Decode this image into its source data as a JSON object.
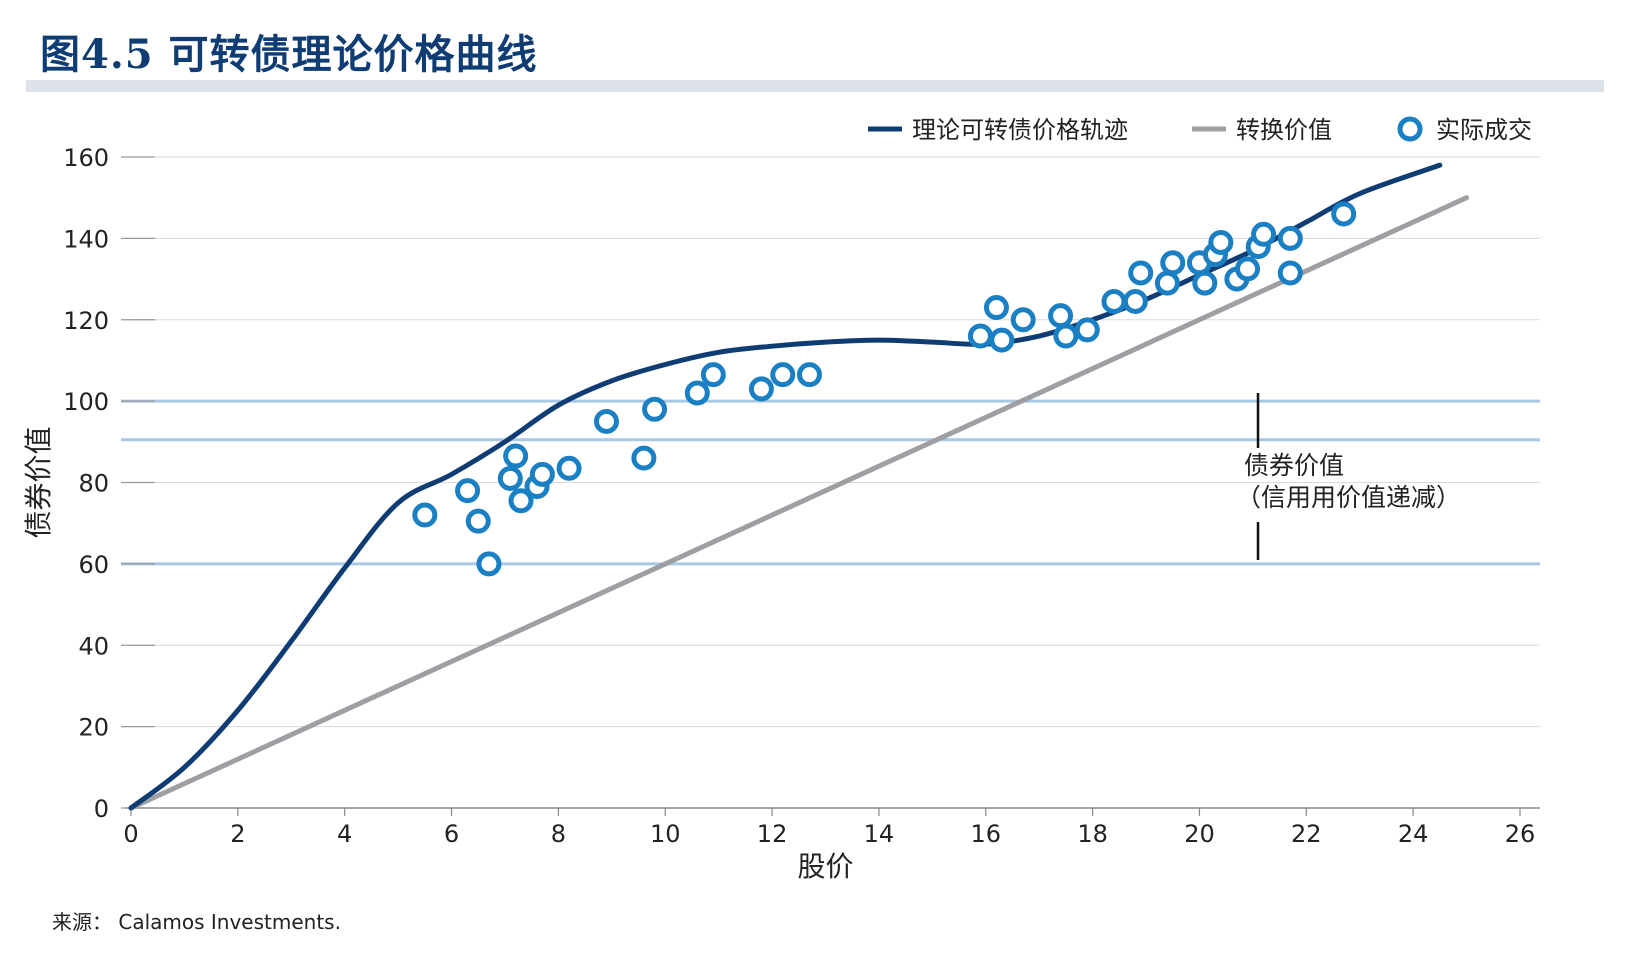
{
  "header": {
    "title": "图4.5 可转债理论价格曲线"
  },
  "footer": {
    "source": "来源： Calamos Investments."
  },
  "annotation": {
    "line1": "债券价值",
    "line2": "（信用用价值递减）"
  },
  "colors": {
    "theory": "#0f3d73",
    "conversion": "#9d9fa3",
    "actual": "#1b7fc3",
    "band": "#a8c8e6",
    "title_bar": "#dde2e8"
  },
  "chart_data": {
    "type": "line",
    "xlabel": "股价",
    "ylabel": "债券价值",
    "xlim": [
      0,
      26
    ],
    "ylim": [
      0,
      160
    ],
    "xticks": [
      0,
      2,
      4,
      6,
      8,
      10,
      12,
      14,
      16,
      18,
      20,
      22,
      24,
      26
    ],
    "yticks": [
      0,
      20,
      40,
      60,
      80,
      100,
      120,
      140,
      160
    ],
    "legend_position": "top-right",
    "reference_lines": [
      100,
      90.5,
      60
    ],
    "series": [
      {
        "name": "理论可转债价格轨迹",
        "kind": "line",
        "points": [
          [
            0,
            0
          ],
          [
            1,
            10
          ],
          [
            2,
            24
          ],
          [
            3,
            41
          ],
          [
            4,
            59
          ],
          [
            5,
            75
          ],
          [
            6,
            82
          ],
          [
            7,
            90
          ],
          [
            8,
            99
          ],
          [
            9,
            105
          ],
          [
            10,
            109
          ],
          [
            11,
            112
          ],
          [
            12,
            113.5
          ],
          [
            13,
            114.5
          ],
          [
            14,
            115
          ],
          [
            15,
            114.5
          ],
          [
            16,
            114
          ],
          [
            17,
            116
          ],
          [
            18,
            120
          ],
          [
            19,
            125
          ],
          [
            20,
            131
          ],
          [
            21,
            137
          ],
          [
            22,
            144
          ],
          [
            23,
            151
          ],
          [
            24.5,
            158
          ]
        ]
      },
      {
        "name": "转换价值",
        "kind": "line",
        "points": [
          [
            0,
            0
          ],
          [
            25,
            150
          ]
        ]
      },
      {
        "name": "实际成交",
        "kind": "scatter",
        "points": [
          [
            5.5,
            72
          ],
          [
            6.3,
            78
          ],
          [
            6.5,
            70.5
          ],
          [
            6.7,
            60
          ],
          [
            7.1,
            81
          ],
          [
            7.2,
            86.5
          ],
          [
            7.3,
            75.5
          ],
          [
            7.6,
            79
          ],
          [
            7.7,
            82
          ],
          [
            8.2,
            83.5
          ],
          [
            8.9,
            95
          ],
          [
            9.6,
            86
          ],
          [
            9.8,
            98
          ],
          [
            10.6,
            102
          ],
          [
            10.9,
            106.5
          ],
          [
            11.8,
            103
          ],
          [
            12.2,
            106.5
          ],
          [
            12.7,
            106.5
          ],
          [
            15.9,
            116
          ],
          [
            16.2,
            123
          ],
          [
            16.3,
            115
          ],
          [
            16.7,
            120
          ],
          [
            17.4,
            121
          ],
          [
            17.5,
            116
          ],
          [
            17.9,
            117.5
          ],
          [
            18.4,
            124.5
          ],
          [
            18.8,
            124.5
          ],
          [
            18.9,
            131.5
          ],
          [
            19.4,
            129
          ],
          [
            19.5,
            134
          ],
          [
            20.0,
            134
          ],
          [
            20.1,
            129
          ],
          [
            20.3,
            136
          ],
          [
            20.4,
            139
          ],
          [
            20.7,
            130
          ],
          [
            20.9,
            132.5
          ],
          [
            21.1,
            138
          ],
          [
            21.2,
            141
          ],
          [
            21.7,
            140
          ],
          [
            21.7,
            131.5
          ],
          [
            22.7,
            146
          ]
        ]
      }
    ]
  }
}
